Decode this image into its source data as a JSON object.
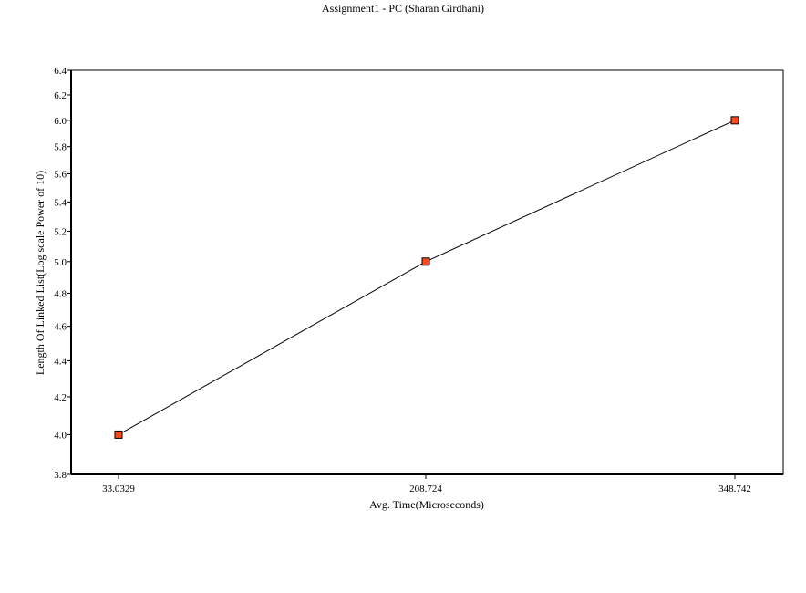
{
  "chart_data": {
    "type": "line",
    "title": "Assignment1 - PC (Sharan Girdhani)",
    "xlabel": "Avg. Time(Microseconds)",
    "ylabel": "Length Of Linked List(Log scale Power of 10)",
    "categories": [
      "33.0329",
      "208.724",
      "348.742"
    ],
    "series": [
      {
        "values": [
          4.0,
          5.0,
          6.0
        ],
        "color": "#000000",
        "marker_color": "#ff4a1c",
        "marker": "square"
      }
    ],
    "ylim": [
      3.8,
      6.4
    ],
    "yscale": "log",
    "yticks": [
      "3.8",
      "4.0",
      "4.2",
      "4.4",
      "4.6",
      "4.8",
      "5.0",
      "5.2",
      "5.4",
      "5.6",
      "5.8",
      "6.0",
      "6.2",
      "6.4"
    ],
    "grid": false,
    "legend": "none"
  }
}
